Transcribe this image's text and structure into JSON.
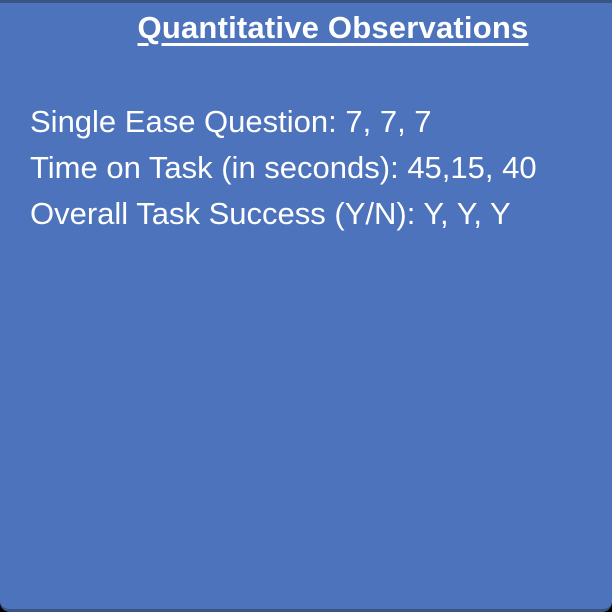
{
  "slide": {
    "title": "Quantitative Observations",
    "observations": [
      "Single Ease Question: 7, 7, 7",
      "Time on Task (in seconds): 45,15, 40",
      "Overall Task Success (Y/N): Y, Y, Y"
    ],
    "colors": {
      "background": "#4C73BC",
      "border": "#3A5484",
      "text": "#FFFFFF"
    }
  }
}
